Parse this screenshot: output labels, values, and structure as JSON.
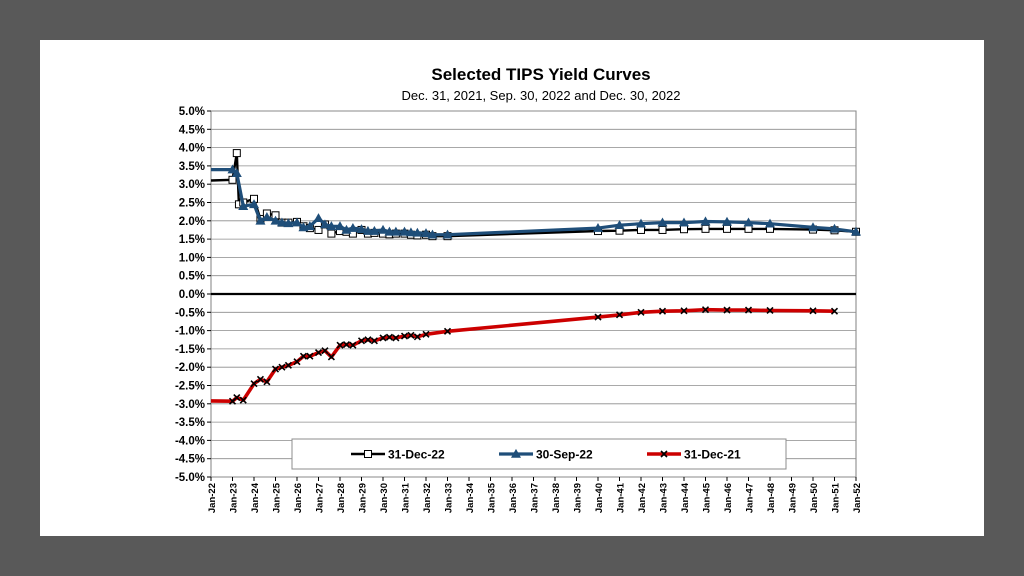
{
  "chart_data": {
    "type": "line",
    "title": "Selected TIPS Yield Curves",
    "subtitle": "Dec. 31, 2021, Sep. 30, 2022 and Dec. 30, 2022",
    "y_ticks": [
      "5.0%",
      "4.5%",
      "4.0%",
      "3.5%",
      "3.0%",
      "2.5%",
      "2.0%",
      "1.5%",
      "1.0%",
      "0.5%",
      "0.0%",
      "-0.5%",
      "-1.0%",
      "-1.5%",
      "-2.0%",
      "-2.5%",
      "-3.0%",
      "-3.5%",
      "-4.0%",
      "-4.5%",
      "-5.0%"
    ],
    "ylim": [
      -5.0,
      5.0
    ],
    "x_ticks": [
      "Jan-22",
      "Jan-23",
      "Jan-24",
      "Jan-25",
      "Jan-26",
      "Jan-27",
      "Jan-28",
      "Jan-29",
      "Jan-30",
      "Jan-31",
      "Jan-32",
      "Jan-33",
      "Jan-34",
      "Jan-35",
      "Jan-36",
      "Jan-37",
      "Jan-38",
      "Jan-39",
      "Jan-40",
      "Jan-41",
      "Jan-42",
      "Jan-43",
      "Jan-44",
      "Jan-45",
      "Jan-46",
      "Jan-47",
      "Jan-48",
      "Jan-49",
      "Jan-50",
      "Jan-51",
      "Jan-52"
    ],
    "xlim": [
      2022,
      2052
    ],
    "grid": "horizontal",
    "legend_position": "bottom-inside",
    "series": [
      {
        "name": "31-Dec-22",
        "color": "#000000",
        "marker": "hollow-square",
        "x": [
          2022.0,
          2023.0,
          2023.2,
          2023.3,
          2023.5,
          2024.0,
          2024.3,
          2024.6,
          2025.0,
          2025.3,
          2025.6,
          2026.0,
          2026.3,
          2026.6,
          2027.0,
          2027.3,
          2027.6,
          2028.0,
          2028.3,
          2028.6,
          2029.0,
          2029.3,
          2029.6,
          2030.0,
          2030.3,
          2030.6,
          2031.0,
          2031.3,
          2031.6,
          2032.0,
          2032.3,
          2033.0,
          2040.0,
          2041.0,
          2042.0,
          2043.0,
          2044.0,
          2045.0,
          2046.0,
          2047.0,
          2048.0,
          2050.0,
          2051.0,
          2052.0
        ],
        "y": [
          3.1,
          3.12,
          3.85,
          2.45,
          2.5,
          2.6,
          2.05,
          2.2,
          2.15,
          1.95,
          1.95,
          1.97,
          1.85,
          1.8,
          1.75,
          1.9,
          1.65,
          1.72,
          1.7,
          1.65,
          1.75,
          1.65,
          1.67,
          1.65,
          1.63,
          1.65,
          1.65,
          1.62,
          1.6,
          1.62,
          1.58,
          1.58,
          1.72,
          1.73,
          1.75,
          1.75,
          1.77,
          1.78,
          1.78,
          1.78,
          1.78,
          1.76,
          1.74,
          1.7
        ]
      },
      {
        "name": "30-Sep-22",
        "color": "#1f4e79",
        "marker": "filled-triangle",
        "x": [
          2022.0,
          2023.0,
          2023.2,
          2023.5,
          2024.0,
          2024.3,
          2024.6,
          2025.0,
          2025.3,
          2025.6,
          2026.0,
          2026.3,
          2026.6,
          2027.0,
          2027.3,
          2027.6,
          2028.0,
          2028.3,
          2028.6,
          2029.0,
          2029.3,
          2029.6,
          2030.0,
          2030.3,
          2030.6,
          2031.0,
          2031.3,
          2031.6,
          2032.0,
          2032.3,
          2033.0,
          2040.0,
          2041.0,
          2042.0,
          2043.0,
          2044.0,
          2045.0,
          2046.0,
          2047.0,
          2048.0,
          2050.0,
          2051.0,
          2052.0
        ],
        "y": [
          3.4,
          3.4,
          3.3,
          2.4,
          2.45,
          2.0,
          2.1,
          2.0,
          1.95,
          1.93,
          1.95,
          1.82,
          1.85,
          2.07,
          1.9,
          1.85,
          1.85,
          1.75,
          1.8,
          1.77,
          1.72,
          1.72,
          1.75,
          1.7,
          1.7,
          1.7,
          1.68,
          1.67,
          1.66,
          1.62,
          1.62,
          1.8,
          1.88,
          1.92,
          1.95,
          1.95,
          1.98,
          1.97,
          1.95,
          1.92,
          1.82,
          1.78,
          1.7
        ]
      },
      {
        "name": "31-Dec-21",
        "color": "#cc0000",
        "marker": "x",
        "x": [
          2022.0,
          2023.0,
          2023.2,
          2023.5,
          2024.0,
          2024.3,
          2024.6,
          2025.0,
          2025.3,
          2025.6,
          2026.0,
          2026.3,
          2026.6,
          2027.0,
          2027.3,
          2027.6,
          2028.0,
          2028.3,
          2028.6,
          2029.0,
          2029.3,
          2029.6,
          2030.0,
          2030.3,
          2030.6,
          2031.0,
          2031.3,
          2031.6,
          2032.0,
          2033.0,
          2040.0,
          2041.0,
          2042.0,
          2043.0,
          2044.0,
          2045.0,
          2046.0,
          2047.0,
          2048.0,
          2050.0,
          2051.0
        ],
        "y": [
          -2.92,
          -2.93,
          -2.83,
          -2.9,
          -2.45,
          -2.33,
          -2.4,
          -2.05,
          -2.0,
          -1.95,
          -1.85,
          -1.7,
          -1.7,
          -1.6,
          -1.55,
          -1.72,
          -1.4,
          -1.38,
          -1.4,
          -1.28,
          -1.25,
          -1.28,
          -1.2,
          -1.18,
          -1.2,
          -1.15,
          -1.13,
          -1.17,
          -1.1,
          -1.02,
          -0.63,
          -0.57,
          -0.5,
          -0.47,
          -0.46,
          -0.43,
          -0.44,
          -0.44,
          -0.45,
          -0.46,
          -0.47
        ]
      }
    ]
  }
}
